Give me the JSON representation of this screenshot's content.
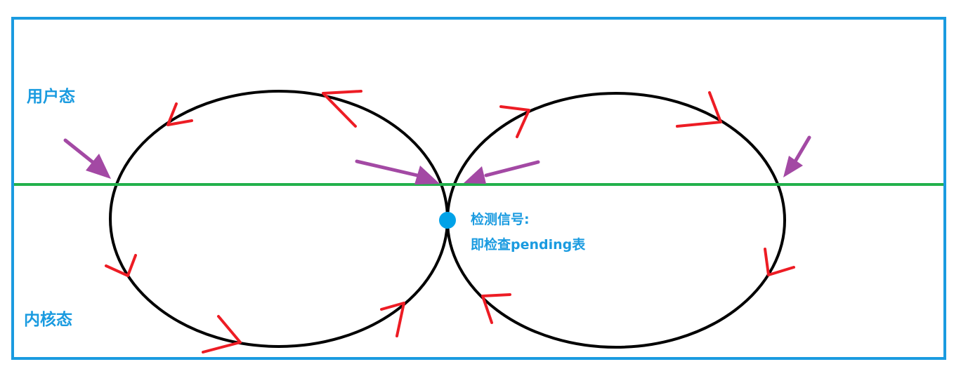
{
  "labels": {
    "user_mode": "用户态",
    "kernel_mode": "内核态",
    "check_signal": "检测信号:",
    "check_pending": "即检查pending表"
  },
  "colors": {
    "frame": "#1a9be0",
    "label_text": "#1a9be0",
    "divider": "#22b14c",
    "loop": "#000000",
    "direction_arrow": "#ed1c24",
    "pointer_arrow": "#a349a4",
    "check_point": "#00a2e8"
  },
  "elements": {
    "frame": "outer-frame",
    "divider": "user-kernel-boundary-line",
    "loops": [
      "left-signal-loop",
      "right-signal-loop"
    ],
    "pointer_arrows": 4,
    "direction_arrows": 14,
    "check_point": "signal-check-dot"
  }
}
